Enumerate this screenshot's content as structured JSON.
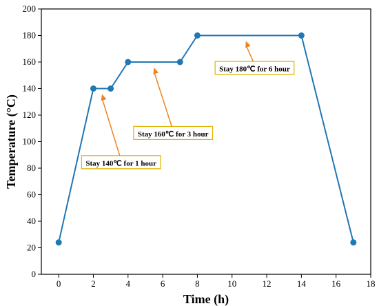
{
  "chart_data": {
    "type": "line",
    "title": "",
    "xlabel": "Time (h)",
    "ylabel": "Temperature (°C)",
    "xlim": [
      -1,
      18
    ],
    "ylim": [
      0,
      200
    ],
    "x_ticks": [
      0,
      2,
      4,
      6,
      8,
      10,
      12,
      14,
      16,
      18
    ],
    "y_ticks": [
      0,
      20,
      40,
      60,
      80,
      100,
      120,
      140,
      160,
      180,
      200
    ],
    "grid": false,
    "legend": "none",
    "series": [
      {
        "color": "#1f77b4",
        "points": [
          {
            "x": 0,
            "y": 24
          },
          {
            "x": 2,
            "y": 140
          },
          {
            "x": 3,
            "y": 140
          },
          {
            "x": 4,
            "y": 160
          },
          {
            "x": 7,
            "y": 160
          },
          {
            "x": 8,
            "y": 180
          },
          {
            "x": 14,
            "y": 180
          },
          {
            "x": 17,
            "y": 24
          }
        ]
      }
    ],
    "annotations": [
      {
        "text": "Stay 140℃  for 1 hour",
        "target": {
          "x": 2.5,
          "y": 140
        },
        "label_at": {
          "x": 3.6,
          "y": 84
        }
      },
      {
        "text": "Stay 160℃  for 3 hour",
        "target": {
          "x": 5.5,
          "y": 160
        },
        "label_at": {
          "x": 6.6,
          "y": 106
        }
      },
      {
        "text": "Stay 180℃  for 6 hour",
        "target": {
          "x": 10.8,
          "y": 180
        },
        "label_at": {
          "x": 11.3,
          "y": 155
        }
      }
    ],
    "annotation_style": {
      "arrow_color": "#f0821e",
      "box_border": "#e0b400"
    }
  }
}
